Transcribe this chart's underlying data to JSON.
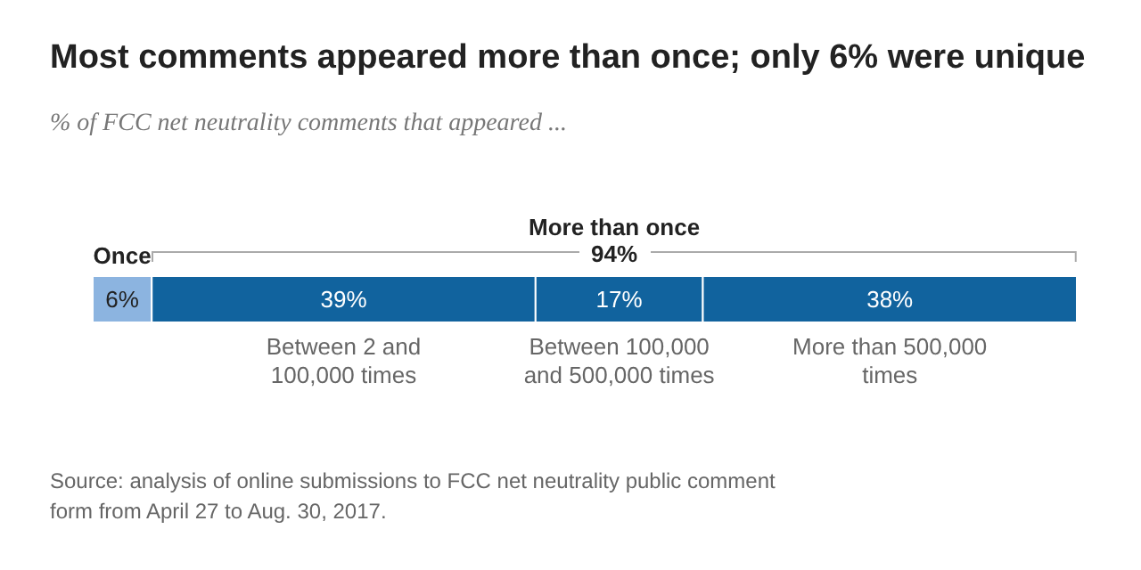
{
  "chart_data": {
    "type": "bar",
    "orientation": "horizontal",
    "stacked": true,
    "title": "Most comments appeared more than once; only 6% were unique",
    "subtitle": "% of FCC net neutrality comments that appeared ...",
    "categories": [
      null
    ],
    "xlim": [
      0,
      100
    ],
    "tick_labels": false,
    "grid": false,
    "legend": false,
    "series": [
      {
        "name": "Once",
        "color": "#8cb4e0",
        "values": [
          6
        ],
        "value_labels": [
          "6%"
        ]
      },
      {
        "name": "Between 2 and 100,000 times",
        "color": "#11639e",
        "values": [
          39
        ],
        "value_labels": [
          "39%"
        ]
      },
      {
        "name": "Between 100,000 and 500,000 times",
        "color": "#11639e",
        "values": [
          17
        ],
        "value_labels": [
          "17%"
        ]
      },
      {
        "name": "More than 500,000 times",
        "color": "#11639e",
        "values": [
          38
        ],
        "value_labels": [
          "38%"
        ]
      }
    ],
    "annotations": [
      "More than once",
      "94%",
      "Source: analysis of online submissions to FCC net neutrality public comment form from April 27 to Aug. 30, 2017."
    ]
  }
}
